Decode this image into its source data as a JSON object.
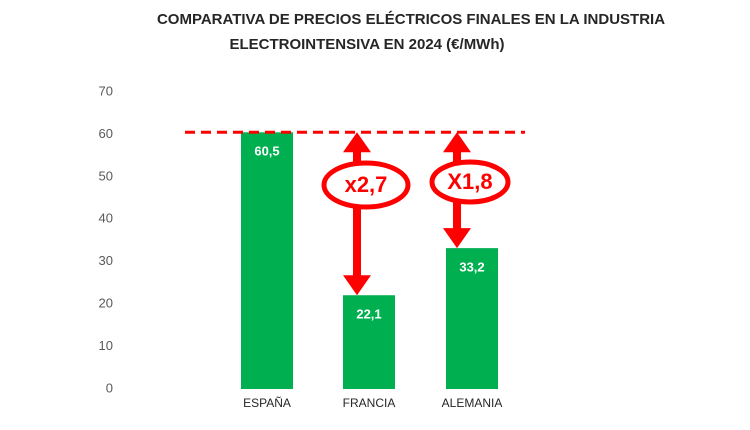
{
  "chart_data": {
    "type": "bar",
    "title": [
      "COMPARATIVA DE PRECIOS ELÉCTRICOS FINALES EN LA INDUSTRIA",
      "ELECTROINTENSIVA EN 2024 (€/MWh)"
    ],
    "categories": [
      "ESPAÑA",
      "FRANCIA",
      "ALEMANIA"
    ],
    "values": [
      60.5,
      22.1,
      33.2
    ],
    "value_labels": [
      "60,5",
      "22,1",
      "33,2"
    ],
    "color": "#00b050",
    "ylim": [
      0,
      70
    ],
    "yticks": [
      0,
      10,
      20,
      30,
      40,
      50,
      60,
      70
    ],
    "grid": false,
    "annotations": [
      "x2,7",
      "X1,8"
    ],
    "annotation_color": "#ff0000"
  }
}
